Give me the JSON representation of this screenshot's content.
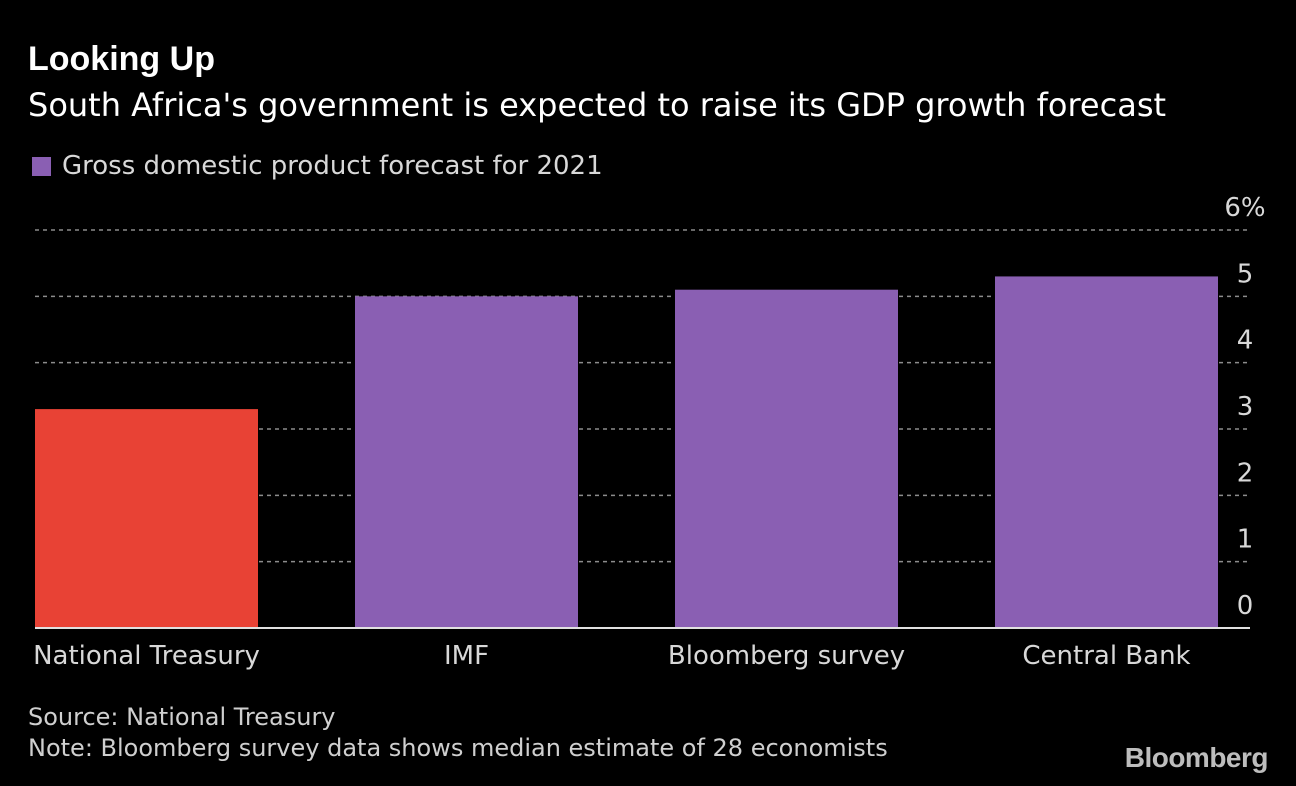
{
  "chart_data": {
    "type": "bar",
    "title": "Looking Up",
    "subtitle": "South Africa's government is expected to raise its GDP growth forecast",
    "legend": [
      {
        "name": "Gross domestic product forecast for 2021",
        "color": "#8a5fb3"
      }
    ],
    "categories": [
      "National Treasury",
      "IMF",
      "Bloomberg survey",
      "Central Bank"
    ],
    "values": [
      3.3,
      5.0,
      5.1,
      5.3
    ],
    "colors": [
      "#e84235",
      "#8a5fb3",
      "#8a5fb3",
      "#8a5fb3"
    ],
    "ylim": [
      0,
      6
    ],
    "yticks": [
      "0",
      "1",
      "2",
      "3",
      "4",
      "5",
      "6%"
    ],
    "grid": true,
    "y_axis_side": "right",
    "legend_position": "top-left"
  },
  "footer": {
    "source": "Source: National Treasury",
    "note": "Note: Bloomberg survey data shows median estimate of 28 economists",
    "brand": "Bloomberg"
  }
}
